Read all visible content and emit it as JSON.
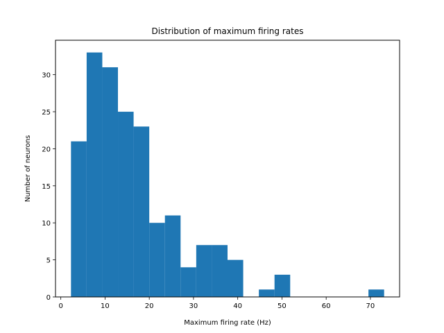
{
  "chart_data": {
    "type": "bar",
    "title": "Distribution of maximum firing rates",
    "xlabel": "Maximum firing rate (Hz)",
    "ylabel": "Number of neurons",
    "bin_edges": [
      2.3,
      5.84,
      9.38,
      12.92,
      16.46,
      20.0,
      23.54,
      27.08,
      30.62,
      34.16,
      37.7,
      41.24,
      44.78,
      48.32,
      51.86,
      55.4,
      58.94,
      62.48,
      66.02,
      69.56,
      73.1
    ],
    "counts": [
      21,
      33,
      31,
      25,
      23,
      10,
      11,
      4,
      7,
      7,
      5,
      0,
      1,
      3,
      0,
      0,
      0,
      0,
      0,
      1
    ],
    "xlim": [
      -1.2,
      76.6
    ],
    "ylim": [
      0,
      34.65
    ],
    "xticks": [
      0,
      10,
      20,
      30,
      40,
      50,
      60,
      70
    ],
    "yticks": [
      0,
      5,
      10,
      15,
      20,
      25,
      30
    ],
    "bar_color": "#1f77b4",
    "grid": false,
    "legend": "none"
  }
}
